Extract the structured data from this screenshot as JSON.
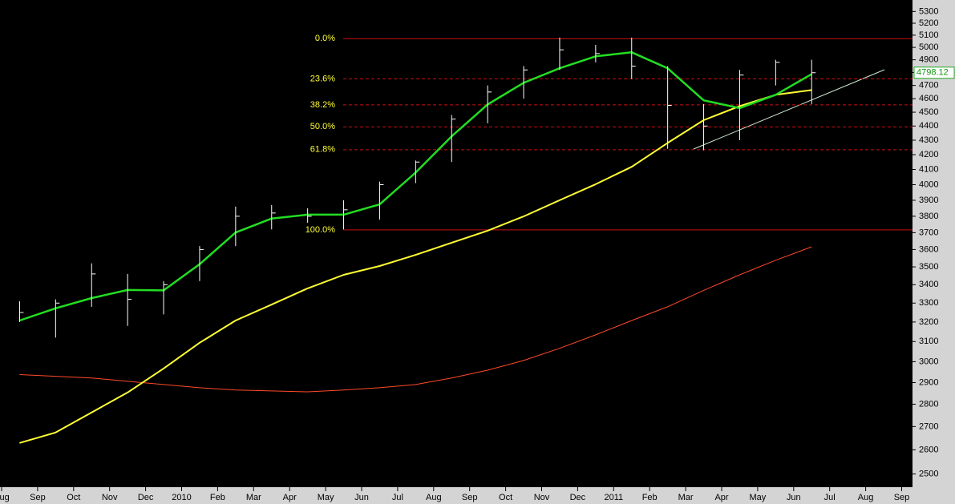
{
  "chart_data": {
    "type": "ohlc",
    "log": true,
    "grid": false,
    "categories": [
      "Aug",
      "Sep",
      "Oct",
      "Nov",
      "Dec",
      "2010",
      "Feb",
      "Mar",
      "Apr",
      "May",
      "Jun",
      "Jul",
      "Aug",
      "Sep",
      "Oct",
      "Nov",
      "Dec",
      "2011",
      "Feb",
      "Mar",
      "Apr",
      "May",
      "Jun",
      "Jul",
      "Aug",
      "Sep"
    ],
    "ylim": [
      2450,
      5400
    ],
    "yticks": [
      2500,
      2600,
      2700,
      2800,
      2900,
      3000,
      3100,
      3200,
      3300,
      3400,
      3500,
      3600,
      3700,
      3800,
      3900,
      4000,
      4100,
      4200,
      4300,
      4400,
      4500,
      4600,
      4700,
      4800,
      4900,
      5000,
      5100,
      5200,
      5300
    ],
    "price": {
      "color": "#ffffff",
      "high": [
        3310,
        3320,
        3520,
        3460,
        3420,
        3620,
        3860,
        3870,
        3850,
        3900,
        4020,
        4160,
        4480,
        4700,
        4850,
        5080,
        5020,
        5080,
        4850,
        4560,
        4820,
        4900,
        4900,
        null,
        null,
        null
      ],
      "low": [
        3200,
        3120,
        3280,
        3180,
        3240,
        3420,
        3620,
        3720,
        3760,
        3720,
        3780,
        4010,
        4150,
        4420,
        4600,
        4820,
        4880,
        4750,
        4240,
        4230,
        4300,
        4700,
        4560,
        null,
        null,
        null
      ],
      "close": [
        3250,
        3300,
        3460,
        3320,
        3400,
        3600,
        3800,
        3820,
        3800,
        3840,
        4000,
        4150,
        4450,
        4650,
        4820,
        4980,
        4950,
        4850,
        4550,
        4400,
        4780,
        4880,
        4798.12,
        null,
        null,
        null
      ]
    },
    "series": [
      {
        "color": "#ff4a2a",
        "width": 1,
        "values": [
          2938,
          2930,
          2922,
          2906,
          2891,
          2876,
          2865,
          2861,
          2857,
          2865,
          2876,
          2891,
          2922,
          2959,
          3006,
          3066,
          3134,
          3208,
          3280,
          3369,
          3455,
          3538,
          3616,
          null,
          null,
          null
        ]
      },
      {
        "color": "#ffff33",
        "width": 2,
        "values": [
          2629,
          2674,
          2763,
          2854,
          2967,
          3094,
          3208,
          3292,
          3380,
          3455,
          3505,
          3569,
          3640,
          3712,
          3799,
          3900,
          4003,
          4118,
          4281,
          4442,
          4545,
          4629,
          4665,
          null,
          null,
          null
        ]
      },
      {
        "color": "#22dd22",
        "width": 2.5,
        "values": [
          3208,
          3272,
          3327,
          3371,
          3369,
          3515,
          3701,
          3786,
          3810,
          3810,
          3874,
          4080,
          4327,
          4557,
          4720,
          4833,
          4928,
          4960,
          4833,
          4588,
          4530,
          4629,
          4788,
          null,
          null,
          null
        ]
      }
    ],
    "fib_levels": [
      {
        "label": "0.0%",
        "value": 5071,
        "dashed": false
      },
      {
        "label": "23.6%",
        "value": 4751,
        "dashed": true
      },
      {
        "label": "38.2%",
        "value": 4554,
        "dashed": true
      },
      {
        "label": "50.0%",
        "value": 4394,
        "dashed": true
      },
      {
        "label": "61.8%",
        "value": 4234,
        "dashed": true
      },
      {
        "label": "100.0%",
        "value": 3717,
        "dashed": false
      }
    ],
    "fib_color": "#cc1111",
    "fib_label_color": "#ffff33",
    "last_price": 4798.12
  }
}
